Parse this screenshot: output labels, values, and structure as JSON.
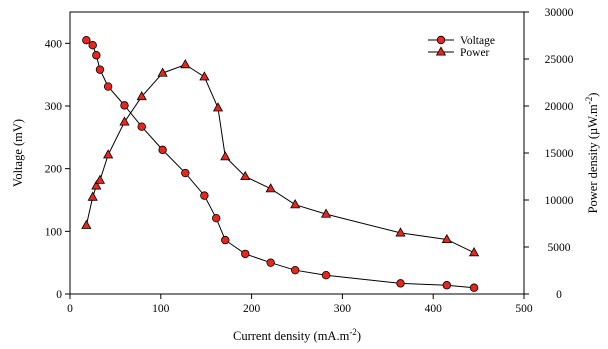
{
  "chart_data": {
    "type": "line",
    "xlabel": "Current density (mA.m",
    "xlabel_sup": "-2",
    "xlabel_tail": ")",
    "ylabel": "Voltage (mV)",
    "y2label": "Power density (µW.m",
    "y2label_sup": "-2",
    "y2label_tail": ")",
    "xlim": [
      0,
      500
    ],
    "ylim": [
      0,
      450
    ],
    "y2lim": [
      0,
      30000
    ],
    "x_ticks": [
      0,
      100,
      200,
      300,
      400,
      500
    ],
    "y_ticks": [
      0,
      100,
      200,
      300,
      400
    ],
    "y2_ticks": [
      0,
      5000,
      10000,
      15000,
      20000,
      25000,
      30000
    ],
    "legend_position": "top-right",
    "grid": false,
    "series": [
      {
        "name": "Voltage",
        "axis": "left",
        "marker": "circle",
        "color": "#e8261c",
        "x": [
          18,
          25,
          29,
          33,
          42,
          60,
          79,
          102,
          127,
          148,
          161,
          171,
          193,
          221,
          248,
          282,
          364,
          415,
          445
        ],
        "y": [
          405,
          397,
          381,
          358,
          331,
          301,
          267,
          230,
          193,
          157,
          121,
          86,
          64,
          50,
          38,
          30,
          17,
          14,
          10
        ]
      },
      {
        "name": "Power",
        "axis": "right",
        "marker": "triangle",
        "color": "#e8261c",
        "x": [
          18,
          25,
          29,
          33,
          42,
          60,
          79,
          102,
          127,
          148,
          163,
          171,
          193,
          221,
          248,
          282,
          364,
          415,
          445
        ],
        "y": [
          7300,
          10300,
          11500,
          12100,
          14800,
          18300,
          21000,
          23500,
          24400,
          23100,
          19800,
          14600,
          12500,
          11200,
          9500,
          8500,
          6500,
          5800,
          4400
        ]
      }
    ]
  }
}
